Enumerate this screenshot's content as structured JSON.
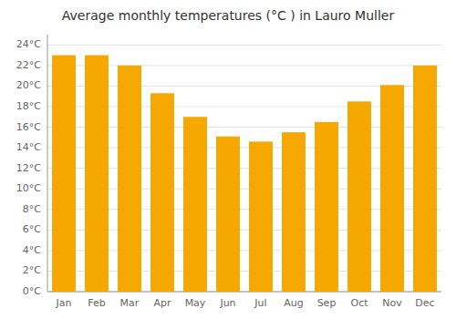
{
  "chart_data": {
    "type": "bar",
    "title": "Average monthly temperatures (°C ) in Lauro Muller",
    "categories": [
      "Jan",
      "Feb",
      "Mar",
      "Apr",
      "May",
      "Jun",
      "Jul",
      "Aug",
      "Sep",
      "Oct",
      "Nov",
      "Dec"
    ],
    "values": [
      23.0,
      23.0,
      22.0,
      19.3,
      17.0,
      15.1,
      14.6,
      15.5,
      16.5,
      18.5,
      20.1,
      22.0
    ],
    "color": "#F5A800",
    "ylim": [
      0,
      25
    ],
    "yticks": [
      {
        "value": 0,
        "label": "0°C"
      },
      {
        "value": 2,
        "label": "2°C"
      },
      {
        "value": 4,
        "label": "4°C"
      },
      {
        "value": 6,
        "label": "6°C"
      },
      {
        "value": 8,
        "label": "8°C"
      },
      {
        "value": 10,
        "label": "10°C"
      },
      {
        "value": 12,
        "label": "12°C"
      },
      {
        "value": 14,
        "label": "14°C"
      },
      {
        "value": 16,
        "label": "16°C"
      },
      {
        "value": 18,
        "label": "18°C"
      },
      {
        "value": 20,
        "label": "20°C"
      },
      {
        "value": 22,
        "label": "22°C"
      },
      {
        "value": 24,
        "label": "24°C"
      }
    ],
    "grid": true
  }
}
